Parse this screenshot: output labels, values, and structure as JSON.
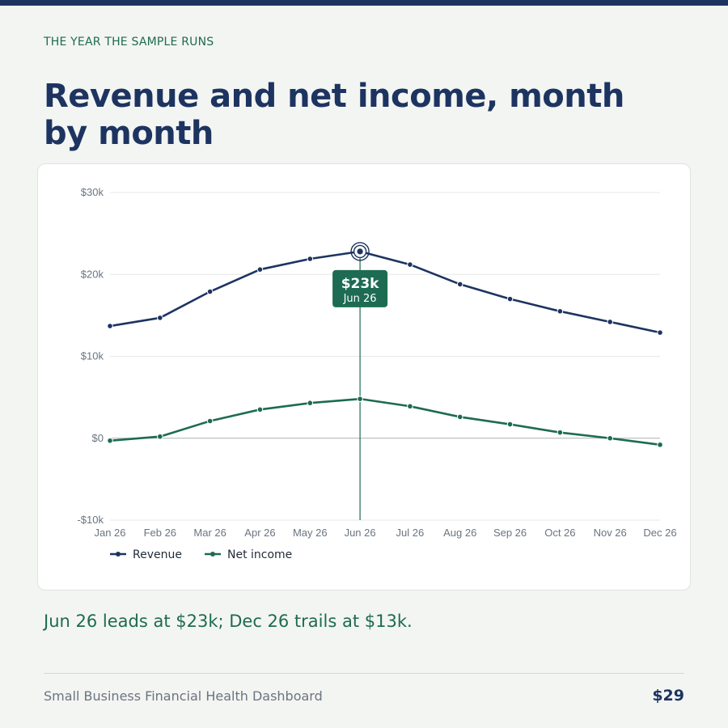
{
  "eyebrow": "THE YEAR THE SAMPLE RUNS",
  "title": "Revenue and net income, month by month",
  "takeaway": "Jun 26 leads at $23k; Dec 26 trails at $13k.",
  "footer": {
    "left": "Small Business Financial Health Dashboard",
    "right": "$29"
  },
  "colors": {
    "revenue": "#1d3461",
    "net_income": "#1d6b52",
    "background": "#f3f5f2"
  },
  "chart_data": {
    "type": "line",
    "x": [
      "Jan 26",
      "Feb 26",
      "Mar 26",
      "Apr 26",
      "May 26",
      "Jun 26",
      "Jul 26",
      "Aug 26",
      "Sep 26",
      "Oct 26",
      "Nov 26",
      "Dec 26"
    ],
    "series": [
      {
        "name": "Revenue",
        "values": [
          13700,
          14700,
          17900,
          20600,
          21900,
          22800,
          21200,
          18800,
          17000,
          15500,
          14200,
          12900
        ]
      },
      {
        "name": "Net income",
        "values": [
          -300,
          200,
          2100,
          3500,
          4300,
          4800,
          3900,
          2600,
          1700,
          700,
          0,
          -800
        ]
      }
    ],
    "ylim": [
      -10000,
      30000
    ],
    "y_ticks": [
      -10000,
      0,
      10000,
      20000,
      30000
    ],
    "y_tick_labels": [
      "-$10k",
      "$0",
      "$10k",
      "$20k",
      "$30k"
    ],
    "grid": true,
    "legend": "bottom-left",
    "highlight": {
      "x": "Jun 26",
      "series": "Revenue",
      "label": "$23k",
      "sublabel": "Jun 26"
    }
  }
}
